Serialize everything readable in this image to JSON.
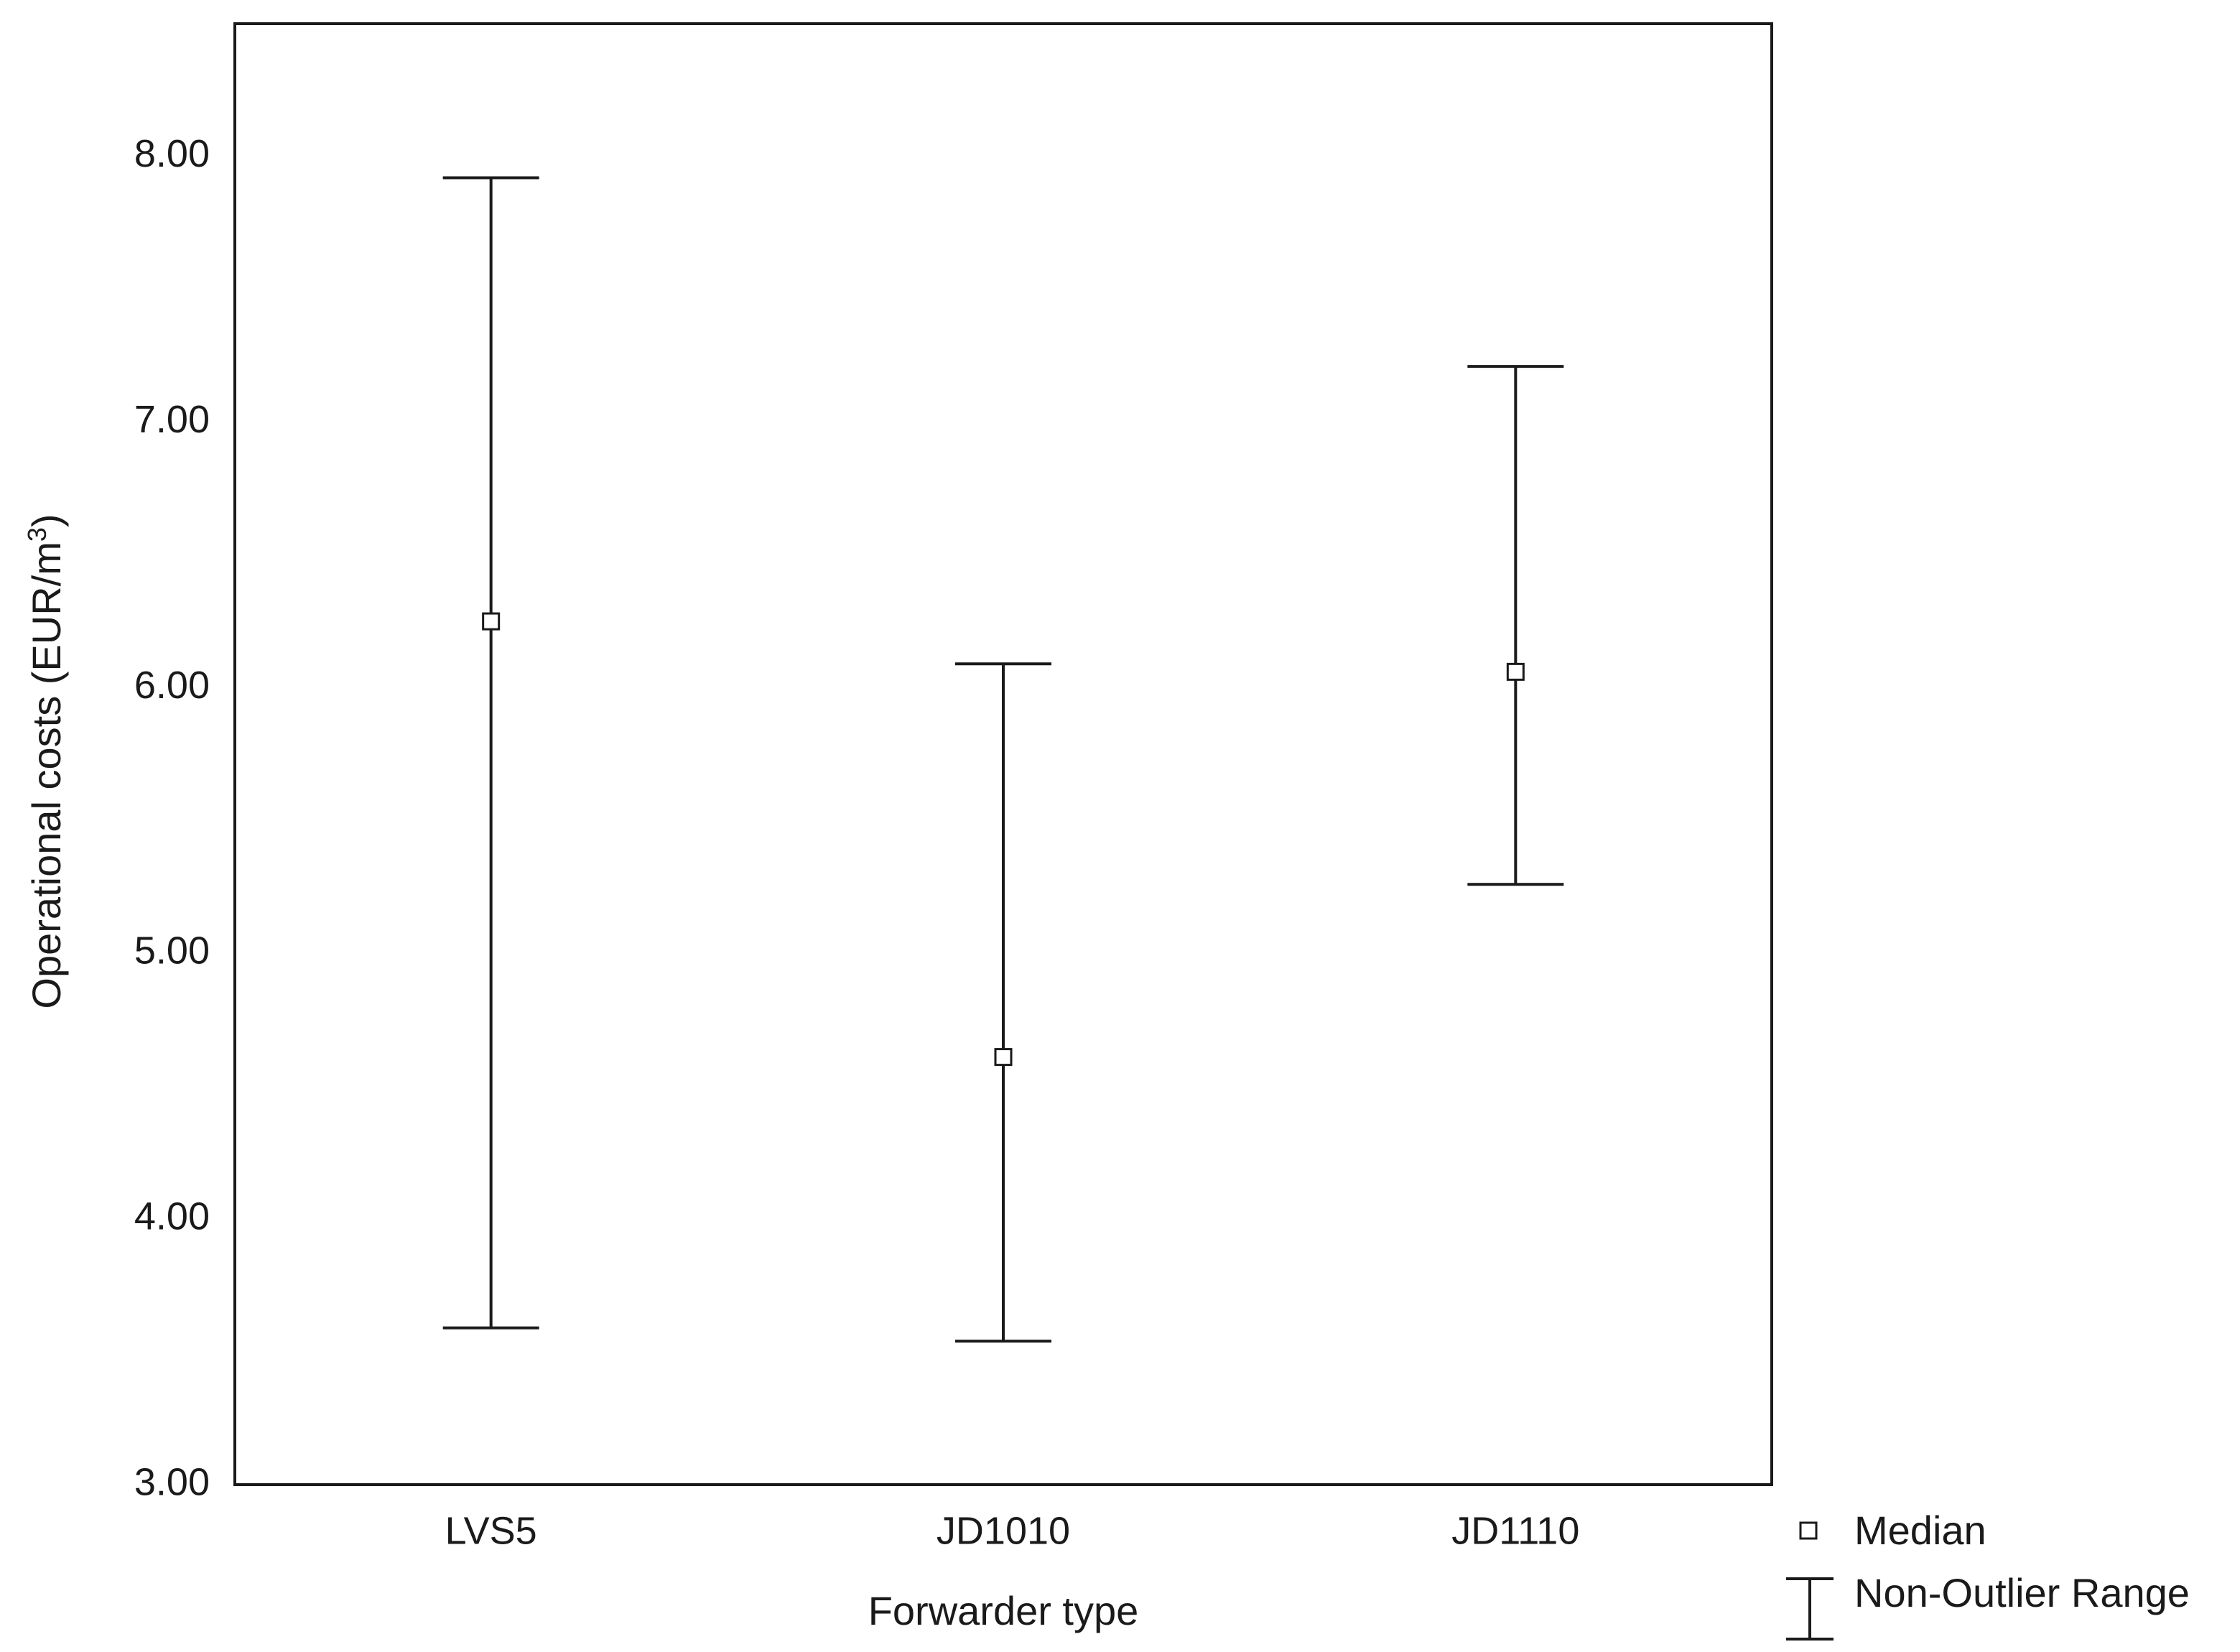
{
  "chart_data": {
    "type": "range",
    "xlabel": "Forwarder type",
    "ylabel": "Operational costs (EUR/m",
    "ylabel_superscript": "3",
    "ylabel_suffix": ")",
    "ylim": [
      3.0,
      8.5
    ],
    "yticks": [
      "3.00",
      "4.00",
      "5.00",
      "6.00",
      "7.00",
      "8.00"
    ],
    "categories": [
      "LVS5",
      "JD1010",
      "JD1110"
    ],
    "series": [
      {
        "name": "Median",
        "values": [
          6.25,
          4.61,
          6.06
        ]
      },
      {
        "name": "Non-Outlier Range",
        "min": [
          3.59,
          3.54,
          5.26
        ],
        "max": [
          7.92,
          6.09,
          7.21
        ]
      }
    ],
    "grid": false,
    "legend_position": "bottom-right",
    "colors": {
      "line": "#1a1a1a",
      "marker_fill": "#ffffff",
      "background": "#ffffff"
    }
  }
}
